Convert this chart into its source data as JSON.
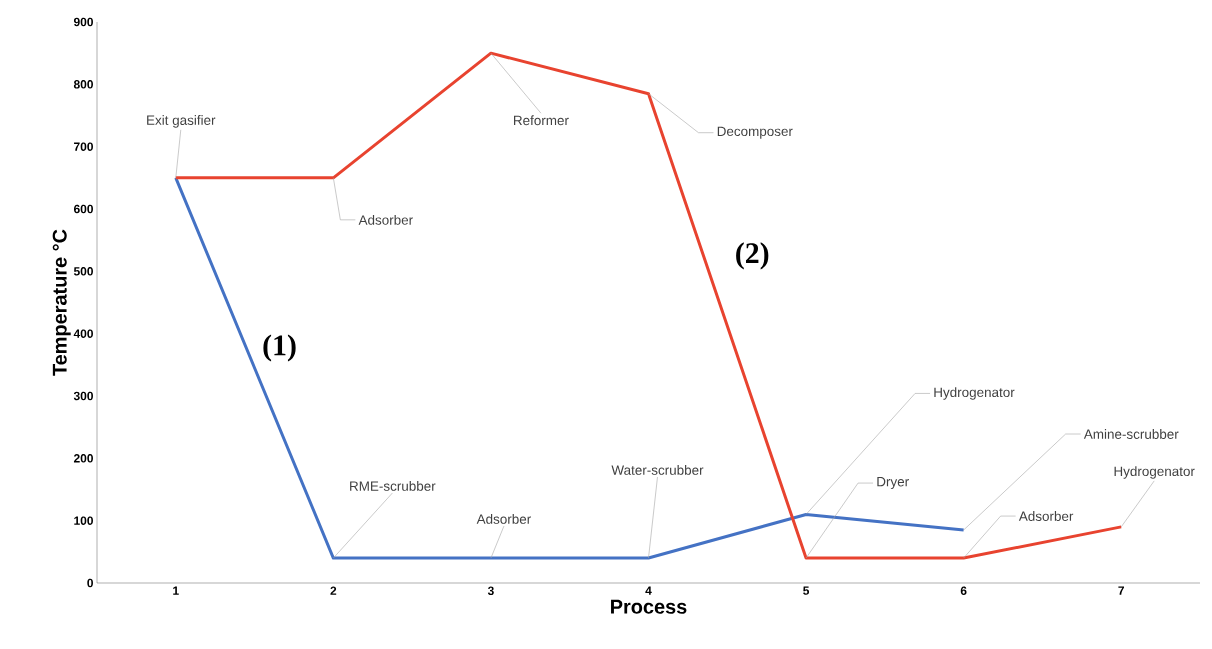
{
  "chart_data": {
    "type": "line",
    "xlabel": "Process",
    "ylabel": "Temperature °C",
    "x": [
      1,
      2,
      3,
      4,
      5,
      6,
      7
    ],
    "series": [
      {
        "name": "(1)",
        "color": "#4472c4",
        "values": [
          650,
          40,
          40,
          40,
          110,
          85,
          null
        ]
      },
      {
        "name": "(2)",
        "color": "#e8432f",
        "values": [
          650,
          650,
          850,
          785,
          40,
          40,
          90
        ]
      }
    ],
    "xlim": [
      0.5,
      7.5
    ],
    "xticks": [
      1,
      2,
      3,
      4,
      5,
      6,
      7
    ],
    "ylim": [
      0,
      900
    ],
    "yticks": [
      0,
      100,
      200,
      300,
      400,
      500,
      600,
      700,
      800,
      900
    ],
    "grid": false,
    "legend": false,
    "marker": "none",
    "line_style": "solid",
    "annotations": [
      {
        "text": "Exit gasifier",
        "x": 1,
        "y": 650
      },
      {
        "text": "Adsorber",
        "x": 2,
        "y": 650
      },
      {
        "text": "Reformer",
        "x": 3,
        "y": 850
      },
      {
        "text": "Decomposer",
        "x": 4,
        "y": 785
      },
      {
        "text": "RME-scrubber",
        "x": 2,
        "y": 40
      },
      {
        "text": "Adsorber",
        "x": 3,
        "y": 40
      },
      {
        "text": "Water-scrubber",
        "x": 4,
        "y": 40
      },
      {
        "text": "Hydrogenator",
        "x": 5,
        "y": 110
      },
      {
        "text": "Dryer",
        "x": 5,
        "y": 40
      },
      {
        "text": "Amine-scrubber",
        "x": 6,
        "y": 85
      },
      {
        "text": "Adsorber",
        "x": 6,
        "y": 40
      },
      {
        "text": "Hydrogenator",
        "x": 7,
        "y": 90
      }
    ]
  }
}
